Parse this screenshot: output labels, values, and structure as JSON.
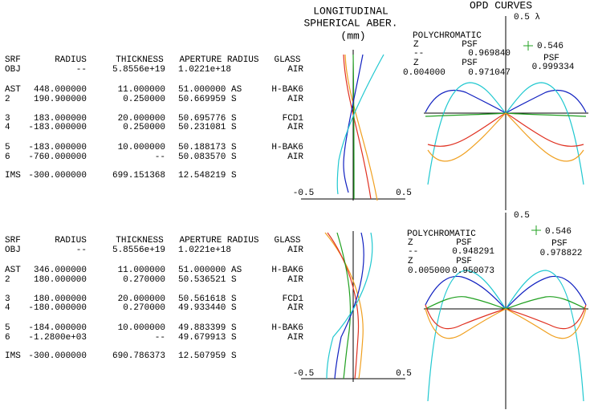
{
  "lsa_title": [
    "LONGITUDINAL",
    "SPHERICAL ABER.",
    "(mm)"
  ],
  "opd_title": "OPD CURVES",
  "panels": [
    {
      "table": {
        "header": [
          "SRF",
          "RADIUS",
          "THICKNESS",
          "APERTURE RADIUS",
          "GLASS"
        ],
        "rows": [
          [
            "OBJ",
            "--",
            "5.8556e+19",
            "1.0221e+18",
            "AIR"
          ],
          [
            "AST",
            "448.000000",
            "11.000000",
            "51.000000 AS",
            "H-BAK6"
          ],
          [
            "2",
            "190.900000",
            "0.250000",
            "50.669959 S",
            "AIR"
          ],
          [
            "3",
            "183.000000",
            "20.000000",
            "50.695776 S",
            "FCD1"
          ],
          [
            "4",
            "-183.000000",
            "0.250000",
            "50.231081 S",
            "AIR"
          ],
          [
            "5",
            "-183.000000",
            "10.000000",
            "50.188173 S",
            "H-BAK6"
          ],
          [
            "6",
            "-760.000000",
            "--",
            "50.083570 S",
            "AIR"
          ],
          [
            "IMS",
            "-300.000000",
            "699.151368",
            "12.548219 S",
            ""
          ]
        ]
      },
      "lsa_axis": [
        "-0.5",
        "0.5"
      ],
      "opd": {
        "scale": "0.5 λ",
        "mode": "POLYCHROMATIC",
        "z1": [
          "Z",
          "PSF"
        ],
        "v1": [
          "--",
          "0.969840"
        ],
        "z2": [
          "Z",
          "PSF"
        ],
        "v2": [
          "0.004000",
          "0.971047"
        ],
        "legend": [
          "0.546",
          "PSF",
          "0.999334"
        ]
      }
    },
    {
      "table": {
        "header": [
          "SRF",
          "RADIUS",
          "THICKNESS",
          "APERTURE RADIUS",
          "GLASS"
        ],
        "rows": [
          [
            "OBJ",
            "--",
            "5.8556e+19",
            "1.0221e+18",
            "AIR"
          ],
          [
            "AST",
            "346.000000",
            "11.000000",
            "51.000000 AS",
            "H-BAK6"
          ],
          [
            "2",
            "180.000000",
            "0.270000",
            "50.536521 S",
            "AIR"
          ],
          [
            "3",
            "180.000000",
            "20.000000",
            "50.561618 S",
            "FCD1"
          ],
          [
            "4",
            "-180.000000",
            "0.270000",
            "49.933440 S",
            "AIR"
          ],
          [
            "5",
            "-184.000000",
            "10.000000",
            "49.883399 S",
            "H-BAK6"
          ],
          [
            "6",
            "-1.2800e+03",
            "--",
            "49.679913 S",
            "AIR"
          ],
          [
            "IMS",
            "-300.000000",
            "690.786373",
            "12.507959 S",
            ""
          ]
        ]
      },
      "lsa_axis": [
        "-0.5",
        "0.5"
      ],
      "opd": {
        "scale": "0.5",
        "mode": "POLYCHROMATIC",
        "z1": [
          "Z",
          "PSF"
        ],
        "v1": [
          "--",
          "0.948291"
        ],
        "z2": [
          "Z",
          "PSF"
        ],
        "v2": [
          "0.005000",
          "0.950073"
        ],
        "legend": [
          "0.546",
          "PSF",
          "0.978822"
        ]
      }
    }
  ]
}
